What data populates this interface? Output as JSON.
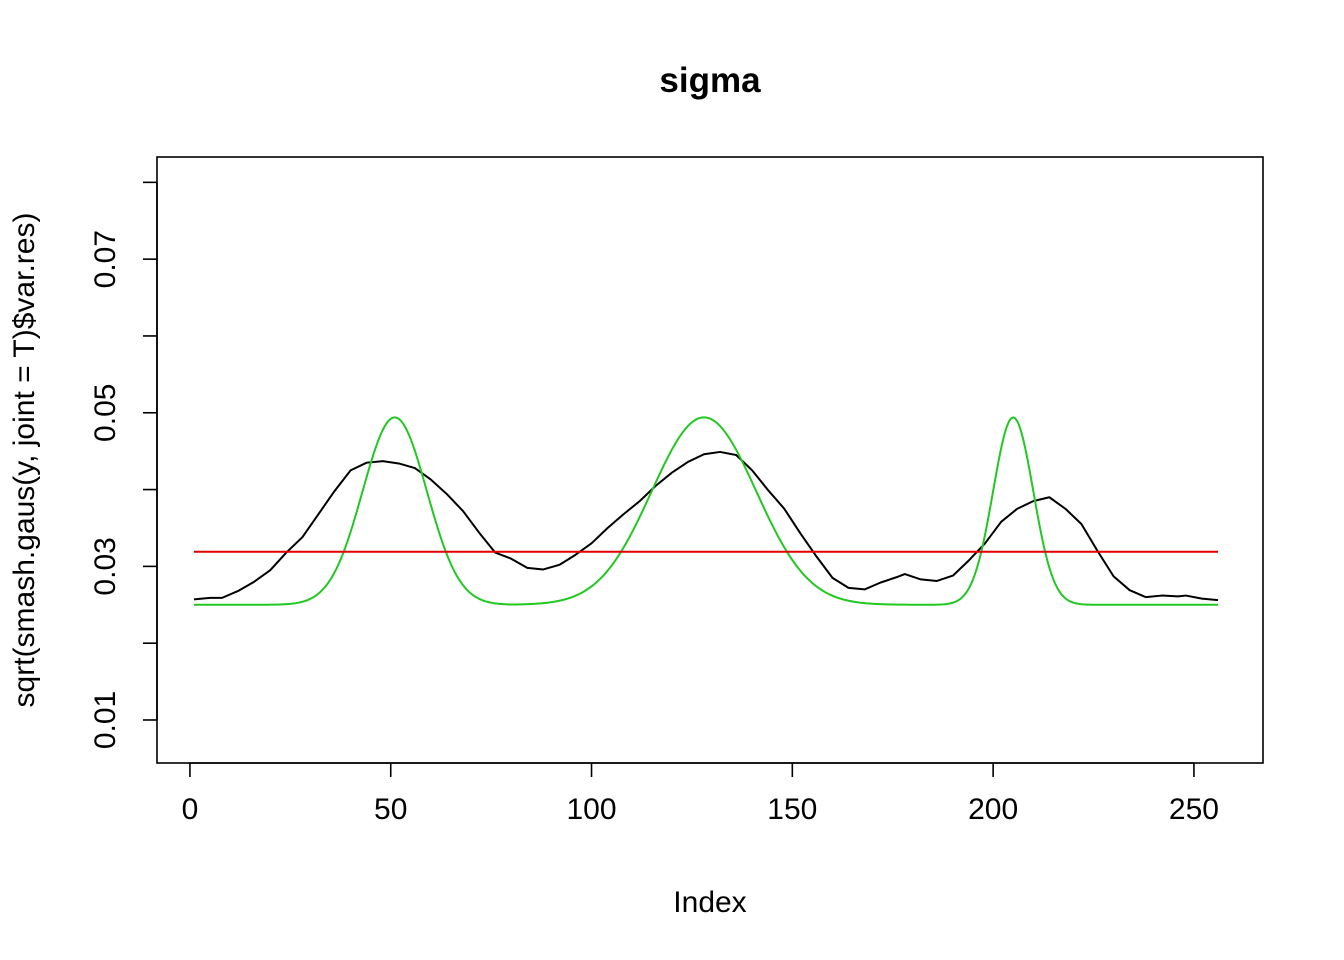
{
  "chart_data": {
    "type": "line",
    "title": "sigma",
    "xlabel": "Index",
    "ylabel": "sqrt(smash.gaus(y, joint = T)$var.res)",
    "xlim": [
      -8.2,
      267.2
    ],
    "ylim": [
      0.0044,
      0.0833
    ],
    "x_ticks": [
      0,
      50,
      100,
      150,
      200,
      250
    ],
    "y_ticks": [
      0.01,
      0.02,
      0.03,
      0.04,
      0.05,
      0.06,
      0.07,
      0.08
    ],
    "y_tick_labels": [
      "0.01",
      "",
      "0.03",
      "",
      "0.05",
      "",
      "0.07",
      ""
    ],
    "grid": false,
    "legend": "none",
    "series": [
      {
        "color": "#000000",
        "x": [
          1,
          5,
          8,
          12,
          16,
          20,
          24,
          28,
          32,
          36,
          40,
          44,
          48,
          52,
          56,
          60,
          64,
          68,
          72,
          76,
          80,
          84,
          88,
          92,
          96,
          100,
          104,
          108,
          112,
          116,
          120,
          124,
          128,
          132,
          136,
          140,
          144,
          148,
          152,
          156,
          160,
          164,
          168,
          172,
          176,
          178,
          182,
          186,
          190,
          194,
          198,
          202,
          206,
          210,
          214,
          218,
          222,
          226,
          230,
          234,
          238,
          242,
          246,
          248,
          252,
          256
        ],
        "y": [
          0.0257,
          0.0259,
          0.0259,
          0.0268,
          0.028,
          0.0295,
          0.0318,
          0.0338,
          0.0368,
          0.0398,
          0.0425,
          0.0435,
          0.0437,
          0.0434,
          0.0428,
          0.0413,
          0.0394,
          0.0372,
          0.0344,
          0.0318,
          0.031,
          0.0298,
          0.0296,
          0.0302,
          0.0315,
          0.033,
          0.035,
          0.0368,
          0.0385,
          0.0405,
          0.0422,
          0.0436,
          0.0446,
          0.0449,
          0.0445,
          0.0425,
          0.0399,
          0.0375,
          0.0343,
          0.0313,
          0.0285,
          0.0272,
          0.027,
          0.0279,
          0.0286,
          0.029,
          0.0283,
          0.0281,
          0.0288,
          0.0308,
          0.033,
          0.0358,
          0.0375,
          0.0385,
          0.039,
          0.0375,
          0.0355,
          0.032,
          0.0287,
          0.0269,
          0.026,
          0.0262,
          0.0261,
          0.0262,
          0.0258,
          0.0256
        ]
      },
      {
        "color": "#22c822",
        "shape": "gaussian-bumps",
        "baseline": 0.025,
        "peak": 0.0494,
        "bumps": [
          {
            "center": 51,
            "width": 8
          },
          {
            "center": 128,
            "width": 13
          },
          {
            "center": 205,
            "width": 5
          }
        ],
        "x_range": [
          1,
          256
        ]
      },
      {
        "color": "#e00000",
        "x": [
          1,
          256
        ],
        "y": [
          0.0319,
          0.0319
        ]
      }
    ]
  }
}
